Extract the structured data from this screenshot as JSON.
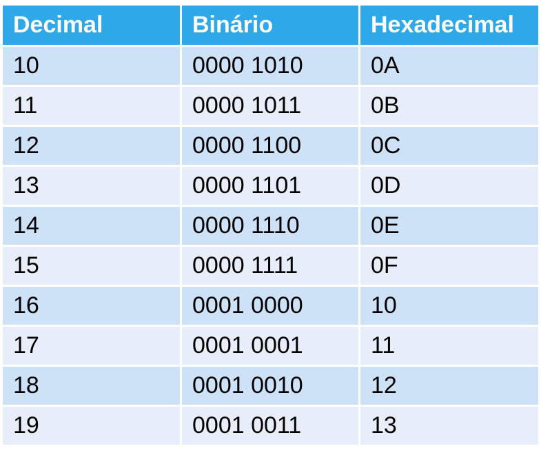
{
  "table": {
    "headers": [
      "Decimal",
      "Binário",
      "Hexadecimal"
    ],
    "rows": [
      [
        "10",
        "0000 1010",
        "0A"
      ],
      [
        "11",
        "0000 1011",
        "0B"
      ],
      [
        "12",
        "0000 1100",
        "0C"
      ],
      [
        "13",
        "0000 1101",
        "0D"
      ],
      [
        "14",
        "0000 1110",
        "0E"
      ],
      [
        "15",
        "0000 1111",
        "0F"
      ],
      [
        "16",
        "0001 0000",
        "10"
      ],
      [
        "17",
        "0001 0001",
        "11"
      ],
      [
        "18",
        "0001 0010",
        "12"
      ],
      [
        "19",
        "0001 0011",
        "13"
      ]
    ]
  },
  "colors": {
    "header_bg": "#2ea8e8",
    "row_odd_bg": "#cde2f7",
    "row_even_bg": "#e7eef9"
  }
}
